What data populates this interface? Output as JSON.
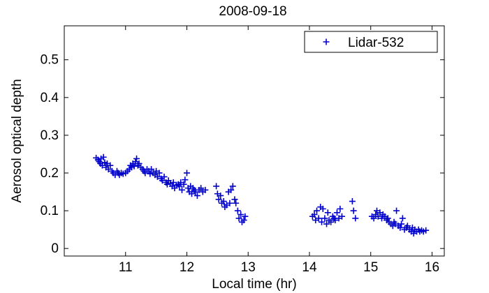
{
  "chart_data": {
    "type": "scatter",
    "title": "2008-09-18",
    "xlabel": "Local time (hr)",
    "ylabel": "Aerosol optical depth",
    "xlim": [
      10.0,
      16.2
    ],
    "ylim": [
      -0.02,
      0.59
    ],
    "xticks": [
      11,
      12,
      13,
      14,
      15,
      16
    ],
    "yticks": [
      0,
      0.1,
      0.2,
      0.3,
      0.4,
      0.5
    ],
    "xtick_labels": [
      "11",
      "12",
      "13",
      "14",
      "15",
      "16"
    ],
    "ytick_labels": [
      "0",
      "0.1",
      "0.2",
      "0.3",
      "0.4",
      "0.5"
    ],
    "grid": false,
    "legend_position": "top-right",
    "series": [
      {
        "name": "Lidar-532",
        "color": "#0000cc",
        "marker": "plus",
        "points": [
          [
            10.52,
            0.24
          ],
          [
            10.55,
            0.235
          ],
          [
            10.57,
            0.23
          ],
          [
            10.59,
            0.225
          ],
          [
            10.6,
            0.238
          ],
          [
            10.62,
            0.22
          ],
          [
            10.64,
            0.242
          ],
          [
            10.66,
            0.228
          ],
          [
            10.68,
            0.215
          ],
          [
            10.7,
            0.225
          ],
          [
            10.72,
            0.21
          ],
          [
            10.75,
            0.22
          ],
          [
            10.78,
            0.205
          ],
          [
            10.8,
            0.2
          ],
          [
            10.83,
            0.195
          ],
          [
            10.86,
            0.205
          ],
          [
            10.88,
            0.2
          ],
          [
            10.9,
            0.195
          ],
          [
            10.93,
            0.2
          ],
          [
            10.96,
            0.198
          ],
          [
            11.0,
            0.2
          ],
          [
            11.03,
            0.205
          ],
          [
            11.06,
            0.21
          ],
          [
            11.08,
            0.22
          ],
          [
            11.1,
            0.215
          ],
          [
            11.12,
            0.225
          ],
          [
            11.14,
            0.218
          ],
          [
            11.16,
            0.23
          ],
          [
            11.18,
            0.238
          ],
          [
            11.2,
            0.22
          ],
          [
            11.22,
            0.225
          ],
          [
            11.25,
            0.215
          ],
          [
            11.28,
            0.21
          ],
          [
            11.3,
            0.205
          ],
          [
            11.32,
            0.2
          ],
          [
            11.35,
            0.21
          ],
          [
            11.38,
            0.205
          ],
          [
            11.4,
            0.198
          ],
          [
            11.42,
            0.21
          ],
          [
            11.45,
            0.2
          ],
          [
            11.48,
            0.195
          ],
          [
            11.5,
            0.205
          ],
          [
            11.52,
            0.19
          ],
          [
            11.55,
            0.2
          ],
          [
            11.58,
            0.185
          ],
          [
            11.6,
            0.18
          ],
          [
            11.63,
            0.19
          ],
          [
            11.66,
            0.175
          ],
          [
            11.68,
            0.17
          ],
          [
            11.7,
            0.18
          ],
          [
            11.73,
            0.172
          ],
          [
            11.76,
            0.165
          ],
          [
            11.78,
            0.175
          ],
          [
            11.8,
            0.16
          ],
          [
            11.83,
            0.168
          ],
          [
            11.86,
            0.17
          ],
          [
            11.88,
            0.165
          ],
          [
            11.9,
            0.175
          ],
          [
            11.92,
            0.155
          ],
          [
            11.95,
            0.17
          ],
          [
            11.97,
            0.182
          ],
          [
            12.0,
            0.2
          ],
          [
            12.02,
            0.16
          ],
          [
            12.04,
            0.15
          ],
          [
            12.06,
            0.165
          ],
          [
            12.08,
            0.145
          ],
          [
            12.1,
            0.16
          ],
          [
            12.12,
            0.155
          ],
          [
            12.14,
            0.15
          ],
          [
            12.17,
            0.14
          ],
          [
            12.2,
            0.155
          ],
          [
            12.23,
            0.16
          ],
          [
            12.26,
            0.15
          ],
          [
            12.3,
            0.155
          ],
          [
            12.48,
            0.165
          ],
          [
            12.5,
            0.145
          ],
          [
            12.52,
            0.13
          ],
          [
            12.55,
            0.14
          ],
          [
            12.57,
            0.12
          ],
          [
            12.6,
            0.125
          ],
          [
            12.62,
            0.11
          ],
          [
            12.65,
            0.115
          ],
          [
            12.68,
            0.15
          ],
          [
            12.7,
            0.12
          ],
          [
            12.72,
            0.155
          ],
          [
            12.75,
            0.165
          ],
          [
            12.78,
            0.13
          ],
          [
            12.8,
            0.12
          ],
          [
            12.83,
            0.1
          ],
          [
            12.85,
            0.08
          ],
          [
            12.88,
            0.09
          ],
          [
            12.9,
            0.07
          ],
          [
            12.93,
            0.075
          ],
          [
            12.95,
            0.085
          ],
          [
            14.05,
            0.085
          ],
          [
            14.08,
            0.09
          ],
          [
            14.1,
            0.075
          ],
          [
            14.12,
            0.1
          ],
          [
            14.15,
            0.08
          ],
          [
            14.18,
            0.11
          ],
          [
            14.2,
            0.07
          ],
          [
            14.22,
            0.105
          ],
          [
            14.25,
            0.08
          ],
          [
            14.28,
            0.065
          ],
          [
            14.3,
            0.095
          ],
          [
            14.32,
            0.075
          ],
          [
            14.35,
            0.07
          ],
          [
            14.38,
            0.085
          ],
          [
            14.4,
            0.08
          ],
          [
            14.42,
            0.075
          ],
          [
            14.45,
            0.095
          ],
          [
            14.48,
            0.08
          ],
          [
            14.5,
            0.105
          ],
          [
            14.53,
            0.085
          ],
          [
            14.7,
            0.125
          ],
          [
            14.72,
            0.1
          ],
          [
            14.75,
            0.08
          ],
          [
            15.02,
            0.085
          ],
          [
            15.05,
            0.08
          ],
          [
            15.08,
            0.09
          ],
          [
            15.1,
            0.1
          ],
          [
            15.12,
            0.085
          ],
          [
            15.15,
            0.095
          ],
          [
            15.18,
            0.08
          ],
          [
            15.2,
            0.09
          ],
          [
            15.23,
            0.085
          ],
          [
            15.26,
            0.075
          ],
          [
            15.28,
            0.08
          ],
          [
            15.3,
            0.07
          ],
          [
            15.33,
            0.065
          ],
          [
            15.36,
            0.06
          ],
          [
            15.38,
            0.07
          ],
          [
            15.4,
            0.065
          ],
          [
            15.42,
            0.1
          ],
          [
            15.45,
            0.06
          ],
          [
            15.48,
            0.055
          ],
          [
            15.5,
            0.065
          ],
          [
            15.52,
            0.08
          ],
          [
            15.55,
            0.05
          ],
          [
            15.58,
            0.055
          ],
          [
            15.6,
            0.06
          ],
          [
            15.63,
            0.05
          ],
          [
            15.66,
            0.045
          ],
          [
            15.68,
            0.055
          ],
          [
            15.7,
            0.04
          ],
          [
            15.72,
            0.05
          ],
          [
            15.75,
            0.045
          ],
          [
            15.78,
            0.05
          ],
          [
            15.8,
            0.045
          ],
          [
            15.83,
            0.048
          ],
          [
            15.86,
            0.045
          ],
          [
            15.9,
            0.048
          ]
        ]
      }
    ]
  }
}
